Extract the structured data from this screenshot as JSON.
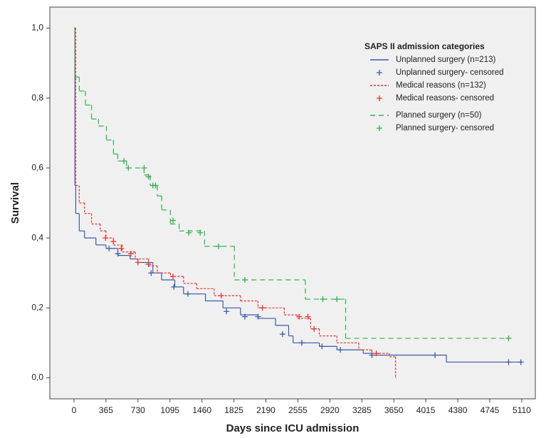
{
  "chart_data": {
    "type": "survival",
    "x_label": "Days since ICU admission",
    "y_label": "Survival",
    "legend_title": "SAPS II admission categories",
    "legend_position": "upper right",
    "background": "#f0f0f0",
    "xlim": [
      -276,
      5265
    ],
    "ylim": [
      -0.06,
      1.06
    ],
    "xticks": [
      0,
      365,
      730,
      1095,
      1460,
      1825,
      2190,
      2555,
      2920,
      3285,
      3650,
      4015,
      4380,
      4745,
      5110
    ],
    "yticks": [
      {
        "value": 0,
        "label": "0,0"
      },
      {
        "value": 0.2,
        "label": "0,2"
      },
      {
        "value": 0.4,
        "label": "0,4"
      },
      {
        "value": 0.6,
        "label": "0,6"
      },
      {
        "value": 0.8,
        "label": "0,8"
      },
      {
        "value": 1,
        "label": "1,0"
      }
    ],
    "series": [
      {
        "name": "Unplanned surgery (n=213)",
        "color": "#3a5ba8",
        "style": "step",
        "dash": "solid",
        "x": [
          0,
          10,
          20,
          60,
          120,
          250,
          365,
          500,
          640,
          730,
          900,
          1000,
          1150,
          1250,
          1500,
          1700,
          1900,
          2100,
          2300,
          2450,
          2500,
          2800,
          3000,
          3300,
          3400,
          4250,
          5100
        ],
        "values": [
          1.0,
          0.55,
          0.47,
          0.42,
          0.4,
          0.38,
          0.37,
          0.35,
          0.34,
          0.33,
          0.3,
          0.28,
          0.26,
          0.24,
          0.22,
          0.2,
          0.18,
          0.17,
          0.15,
          0.12,
          0.1,
          0.09,
          0.08,
          0.07,
          0.065,
          0.045,
          0.045
        ]
      },
      {
        "name": "Unplanned surgery- censored",
        "color": "#3a5ba8",
        "style": "marker",
        "x": [
          400,
          500,
          880,
          1140,
          1300,
          1740,
          1950,
          2100,
          2380,
          2600,
          2830,
          3040,
          3400,
          4120,
          4960,
          5100
        ],
        "values": [
          0.37,
          0.355,
          0.3,
          0.26,
          0.24,
          0.19,
          0.175,
          0.175,
          0.125,
          0.1,
          0.09,
          0.08,
          0.065,
          0.065,
          0.045,
          0.045
        ]
      },
      {
        "name": "Medical reasons (n=132)",
        "color": "#e8302a",
        "style": "step",
        "dash": "short",
        "x": [
          0,
          20,
          60,
          120,
          200,
          300,
          365,
          450,
          550,
          700,
          850,
          950,
          1100,
          1250,
          1400,
          1600,
          1900,
          2100,
          2400,
          2550,
          2700,
          2800,
          3000,
          3250,
          3400,
          3600,
          3670
        ],
        "values": [
          1.0,
          0.55,
          0.5,
          0.47,
          0.44,
          0.42,
          0.4,
          0.38,
          0.36,
          0.34,
          0.32,
          0.3,
          0.29,
          0.27,
          0.255,
          0.235,
          0.22,
          0.2,
          0.18,
          0.17,
          0.14,
          0.12,
          0.1,
          0.08,
          0.07,
          0.06,
          0.0
        ]
      },
      {
        "name": "Medical reasons- censored",
        "color": "#e8302a",
        "style": "marker",
        "x": [
          360,
          450,
          540,
          650,
          730,
          850,
          1130,
          1680,
          2150,
          2570,
          2670,
          2740,
          3450
        ],
        "values": [
          0.4,
          0.39,
          0.37,
          0.355,
          0.33,
          0.325,
          0.29,
          0.235,
          0.2,
          0.175,
          0.175,
          0.14,
          0.07
        ]
      },
      {
        "name": "Planned surgery (n=50)",
        "color": "#2db34a",
        "style": "step",
        "dash": "long",
        "x": [
          0,
          10,
          60,
          130,
          200,
          280,
          370,
          450,
          500,
          600,
          800,
          870,
          950,
          1000,
          1100,
          1200,
          1490,
          1830,
          2640,
          3100,
          4960
        ],
        "values": [
          1.0,
          0.86,
          0.82,
          0.78,
          0.74,
          0.72,
          0.68,
          0.64,
          0.62,
          0.6,
          0.58,
          0.55,
          0.52,
          0.48,
          0.44,
          0.42,
          0.376,
          0.28,
          0.225,
          0.113,
          0.113
        ]
      },
      {
        "name": "Planned surgery- censored",
        "color": "#2db34a",
        "style": "marker",
        "x": [
          570,
          620,
          800,
          850,
          900,
          930,
          1130,
          1310,
          1440,
          1650,
          1950,
          2840,
          3000,
          4960
        ],
        "values": [
          0.62,
          0.6,
          0.6,
          0.575,
          0.55,
          0.55,
          0.45,
          0.415,
          0.415,
          0.376,
          0.28,
          0.225,
          0.225,
          0.113
        ]
      }
    ]
  }
}
